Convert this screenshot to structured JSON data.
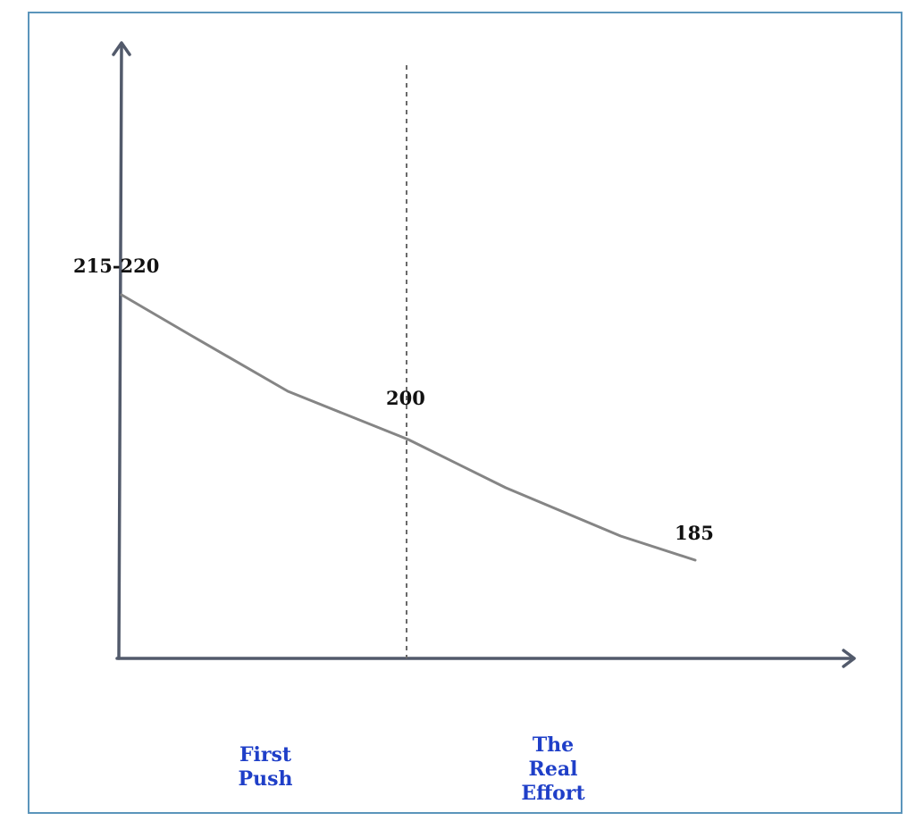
{
  "colors": {
    "border": "#5b95bb",
    "axis": "#525a6b",
    "line": "#858585",
    "phase_label": "#1f3fc8",
    "value_label": "#111111"
  },
  "chart_data": {
    "type": "line",
    "title": "",
    "xlabel": "",
    "ylabel": "",
    "ylim": [
      160,
      240
    ],
    "grid": false,
    "series": [
      {
        "x": [
          0,
          0.12,
          0.29,
          0.5,
          0.67,
          0.87,
          1.0
        ],
        "y": [
          218,
          213,
          206,
          200,
          194,
          188,
          185
        ]
      }
    ],
    "annotations": [
      {
        "text": "215-220",
        "x": 0,
        "y": 218
      },
      {
        "text": "200",
        "x": 0.5,
        "y": 200
      },
      {
        "text": "185",
        "x": 1.0,
        "y": 185
      }
    ],
    "divider": {
      "x": 0.5,
      "style": "dashed"
    },
    "phases": [
      {
        "label": "First\nPush"
      },
      {
        "label": "The\nReal\nEffort"
      }
    ]
  }
}
